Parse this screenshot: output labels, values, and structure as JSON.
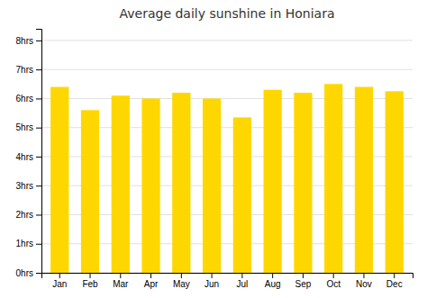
{
  "chart_data": {
    "type": "bar",
    "title": "Average daily sunshine in Honiara",
    "categories": [
      "Jan",
      "Feb",
      "Mar",
      "Apr",
      "May",
      "Jun",
      "Jul",
      "Aug",
      "Sep",
      "Oct",
      "Nov",
      "Dec"
    ],
    "values": [
      6.4,
      5.6,
      6.1,
      6.0,
      6.2,
      6.0,
      5.35,
      6.3,
      6.2,
      6.5,
      6.4,
      6.25
    ],
    "color": "#FFD700",
    "ylim": [
      0,
      8.4
    ],
    "yticks": [
      {
        "value": 0,
        "label": "0hrs"
      },
      {
        "value": 1,
        "label": "1hrs"
      },
      {
        "value": 2,
        "label": "2hrs"
      },
      {
        "value": 3,
        "label": "3hrs"
      },
      {
        "value": 4,
        "label": "4hrs"
      },
      {
        "value": 5,
        "label": "5hrs"
      },
      {
        "value": 6,
        "label": "6hrs"
      },
      {
        "value": 7,
        "label": "7hrs"
      },
      {
        "value": 8,
        "label": "8hrs"
      }
    ],
    "grid": true
  }
}
